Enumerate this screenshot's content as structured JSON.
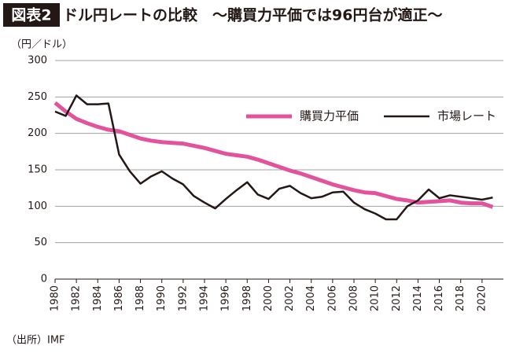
{
  "chart_data": {
    "type": "line",
    "title_label": "図表2",
    "title": "ドル円レートの比較　〜購買力平価では96円台が適正〜",
    "y_label": "（円／ドル）",
    "source": "（出所）IMF",
    "x": [
      1980,
      1981,
      1982,
      1983,
      1984,
      1985,
      1986,
      1987,
      1988,
      1989,
      1990,
      1991,
      1992,
      1993,
      1994,
      1995,
      1996,
      1997,
      1998,
      1999,
      2000,
      2001,
      2002,
      2003,
      2004,
      2005,
      2006,
      2007,
      2008,
      2009,
      2010,
      2011,
      2012,
      2013,
      2014,
      2015,
      2016,
      2017,
      2018,
      2019,
      2020,
      2021
    ],
    "series": [
      {
        "name": "購買力平価",
        "color": "#e2539b",
        "width": 5,
        "values": [
          242,
          230,
          220,
          214,
          209,
          205,
          203,
          198,
          193,
          190,
          188,
          187,
          186,
          183,
          180,
          176,
          172,
          170,
          168,
          164,
          159,
          154,
          149,
          145,
          140,
          135,
          130,
          126,
          122,
          119,
          118,
          114,
          110,
          108,
          105,
          106,
          107,
          108,
          105,
          104,
          104,
          99
        ]
      },
      {
        "name": "市場レート",
        "color": "#231815",
        "width": 2.5,
        "values": [
          230,
          224,
          252,
          240,
          240,
          241,
          171,
          148,
          131,
          141,
          148,
          138,
          130,
          114,
          105,
          97,
          110,
          122,
          133,
          116,
          110,
          124,
          128,
          118,
          111,
          113,
          119,
          120,
          105,
          96,
          90,
          82,
          82,
          100,
          108,
          123,
          111,
          115,
          113,
          111,
          109,
          112
        ]
      }
    ],
    "xlim": [
      1980,
      2022
    ],
    "xticks": [
      1980,
      1982,
      1984,
      1986,
      1988,
      1990,
      1992,
      1994,
      1996,
      1998,
      2000,
      2002,
      2004,
      2006,
      2008,
      2010,
      2012,
      2014,
      2016,
      2018,
      2020
    ],
    "ylim": [
      0,
      300
    ],
    "yticks": [
      0,
      50,
      100,
      150,
      200,
      250,
      300
    ],
    "grid": true,
    "legend_position": "upper right"
  }
}
